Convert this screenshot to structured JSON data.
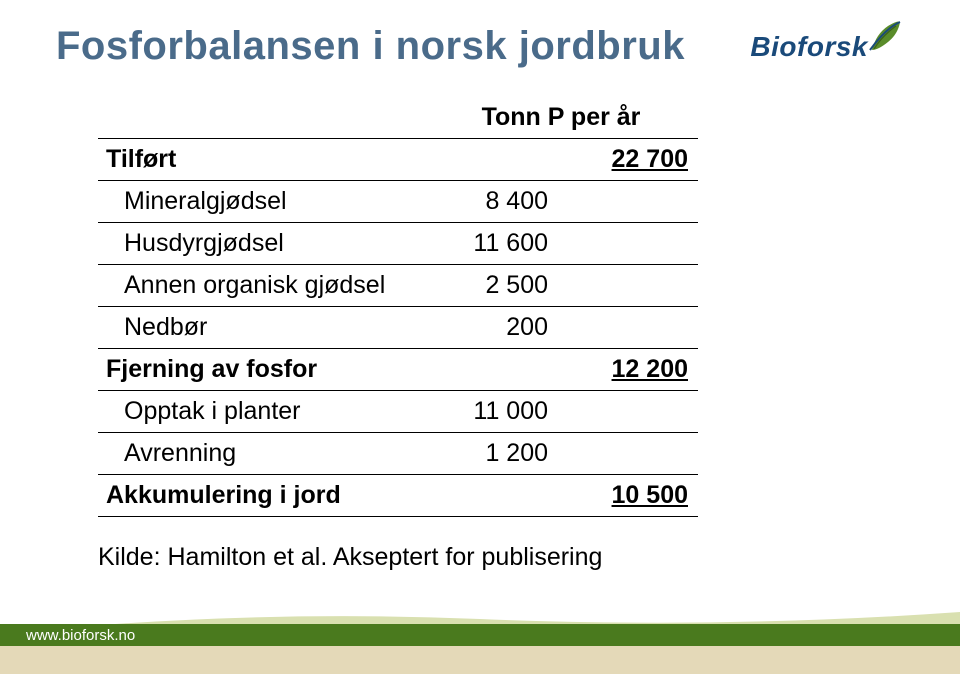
{
  "title": "Fosforbalansen i norsk jordbruk",
  "logo": {
    "text": "Bioforsk",
    "leaf_fill": "#5a8c2a",
    "leaf_stroke": "#1a4a7a",
    "text_color": "#1a4a7a"
  },
  "table": {
    "header_col2": "Tonn P per år",
    "rows": [
      {
        "label": "Tilført",
        "col2": "",
        "col3": "22 700",
        "bold": true,
        "indent": false,
        "underline_col3": true
      },
      {
        "label": "Mineralgjødsel",
        "col2": "8 400",
        "col3": "",
        "bold": false,
        "indent": true,
        "underline_col3": false
      },
      {
        "label": "Husdyrgjødsel",
        "col2": "11 600",
        "col3": "",
        "bold": false,
        "indent": true,
        "underline_col3": false
      },
      {
        "label": "Annen organisk gjødsel",
        "col2": "2 500",
        "col3": "",
        "bold": false,
        "indent": true,
        "underline_col3": false
      },
      {
        "label": "Nedbør",
        "col2": "200",
        "col3": "",
        "bold": false,
        "indent": true,
        "underline_col3": false
      },
      {
        "label": "Fjerning av fosfor",
        "col2": "",
        "col3": "12 200",
        "bold": true,
        "indent": false,
        "underline_col3": true
      },
      {
        "label": "Opptak i planter",
        "col2": "11 000",
        "col3": "",
        "bold": false,
        "indent": true,
        "underline_col3": false
      },
      {
        "label": "Avrenning",
        "col2": "1 200",
        "col3": "",
        "bold": false,
        "indent": true,
        "underline_col3": false
      },
      {
        "label": "Akkumulering i jord",
        "col2": "",
        "col3": "10 500",
        "bold": true,
        "indent": false,
        "underline_col3": true
      }
    ]
  },
  "source": "Kilde: Hamilton et al. Akseptert for publisering",
  "footer": {
    "url": "www.bioforsk.no",
    "green": "#4a7a1e",
    "beige": "#e4d9b8",
    "swoosh1": "#b8c97a",
    "swoosh2": "#d9e0b0"
  },
  "colors": {
    "title": "#4a6b8a",
    "text": "#000000",
    "background": "#ffffff"
  }
}
